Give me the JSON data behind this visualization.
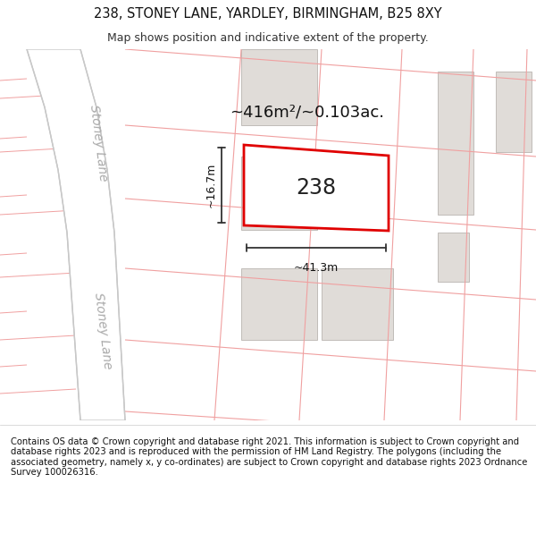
{
  "title": "238, STONEY LANE, YARDLEY, BIRMINGHAM, B25 8XY",
  "subtitle": "Map shows position and indicative extent of the property.",
  "footer": "Contains OS data © Crown copyright and database right 2021. This information is subject to Crown copyright and database rights 2023 and is reproduced with the permission of HM Land Registry. The polygons (including the associated geometry, namely x, y co-ordinates) are subject to Crown copyright and database rights 2023 Ordnance Survey 100026316.",
  "background_color": "#ffffff",
  "map_bg": "#ffffff",
  "road_fill": "#ffffff",
  "road_edge": "#c8c8c8",
  "plot_line_color": "#f0a0a0",
  "building_fill": "#e0dcd8",
  "building_edge": "#c0bcb8",
  "highlight_fill": "#ffffff",
  "highlight_outline": "#e00000",
  "highlight_label": "238",
  "area_text": "~416m²/~0.103ac.",
  "width_text": "~41.3m",
  "height_text": "~16.7m",
  "title_fontsize": 10.5,
  "subtitle_fontsize": 9,
  "footer_fontsize": 7.2,
  "label_fontsize": 17,
  "area_fontsize": 13,
  "dim_fontsize": 9,
  "stoney_lane_fontsize": 10
}
